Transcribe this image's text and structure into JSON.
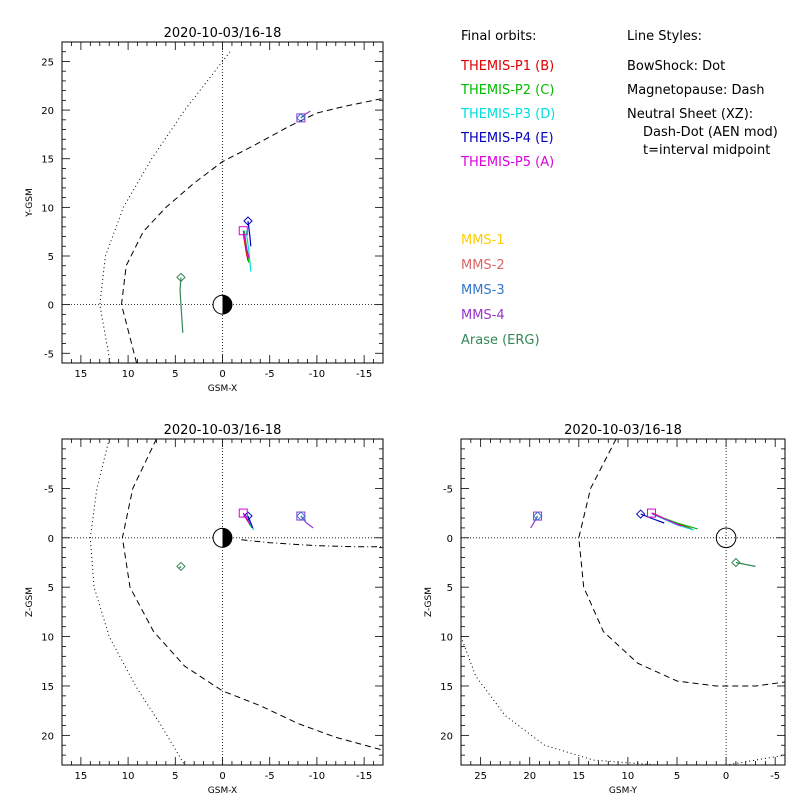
{
  "chart_data": [
    {
      "id": "xy",
      "type": "line",
      "title": "2020-10-03/16-18",
      "xlabel": "GSM-X",
      "ylabel": "Y-GSM",
      "xlim": [
        17,
        -17
      ],
      "ylim": [
        27,
        -6
      ],
      "xticks": [
        15,
        10,
        5,
        0,
        -5,
        -10,
        -15
      ],
      "xtick_labels": [
        "15",
        "10",
        "5",
        "0",
        "-5",
        "-10",
        "-15"
      ],
      "yticks": [
        -5,
        0,
        5,
        10,
        15,
        20,
        25
      ],
      "ytick_labels": [
        "-5",
        "0",
        "5",
        "10",
        "15",
        "20",
        "25"
      ],
      "curves": [
        {
          "name": "bowshock",
          "style": "dot",
          "points": [
            [
              11.9,
              -6
            ],
            [
              13,
              0
            ],
            [
              12.4,
              5
            ],
            [
              10.5,
              10
            ],
            [
              7.5,
              15
            ],
            [
              4,
              20
            ],
            [
              1.2,
              23.5
            ],
            [
              -0.8,
              26
            ]
          ]
        },
        {
          "name": "magnetopause",
          "style": "dash",
          "points": [
            [
              9.1,
              -6
            ],
            [
              10.7,
              0
            ],
            [
              10.2,
              4
            ],
            [
              8.4,
              7.5
            ],
            [
              6,
              10
            ],
            [
              3,
              12.5
            ],
            [
              0,
              14.7
            ],
            [
              -3,
              16.2
            ],
            [
              -7,
              18.3
            ],
            [
              -10,
              19.7
            ],
            [
              -13,
              20.4
            ],
            [
              -17,
              21.2
            ]
          ]
        }
      ],
      "series": [
        {
          "name": "THEMIS-P1 (B)",
          "color": "#dd0000",
          "points": [
            [
              -2.2,
              7.3
            ],
            [
              -2.5,
              5.5
            ],
            [
              -2.7,
              4.5
            ]
          ],
          "marker": "none"
        },
        {
          "name": "THEMIS-P2 (C)",
          "color": "#00bb00",
          "points": [
            [
              -2.3,
              7.6
            ],
            [
              -2.6,
              5.6
            ],
            [
              -2.8,
              4.3
            ]
          ],
          "marker": "none"
        },
        {
          "name": "THEMIS-P3 (D)",
          "color": "#00dddd",
          "points": [
            [
              -2.5,
              7.6
            ],
            [
              -2.8,
              5.5
            ],
            [
              -3.0,
              3.4
            ]
          ],
          "marker": "none"
        },
        {
          "name": "THEMIS-P4 (E)",
          "color": "#0000bb",
          "points": [
            [
              -2.7,
              8.6
            ],
            [
              -2.9,
              7.0
            ],
            [
              -3.0,
              6.0
            ]
          ],
          "marker": "diamond"
        },
        {
          "name": "THEMIS-P5 (A)",
          "color": "#dd00dd",
          "points": [
            [
              -2.2,
              7.6
            ],
            [
              -2.5,
              6.0
            ],
            [
              -2.8,
              4.8
            ]
          ],
          "marker": "square"
        },
        {
          "name": "MMS-4",
          "color": "#9933cc",
          "points": [
            [
              -8.3,
              19.2
            ],
            [
              -8.8,
              19.6
            ],
            [
              -9.3,
              19.9
            ]
          ],
          "marker": "square"
        },
        {
          "name": "MMS-3",
          "color": "#3377cc",
          "points": [
            [
              -8.3,
              19.2
            ],
            [
              -8.7,
              19.5
            ]
          ],
          "marker": "diamond"
        },
        {
          "name": "Arase (ERG)",
          "color": "#338855",
          "points": [
            [
              4.4,
              2.8
            ],
            [
              4.5,
              1.5
            ],
            [
              4.2,
              -2.9
            ]
          ],
          "marker": "diamond"
        }
      ]
    },
    {
      "id": "xz",
      "type": "line",
      "title": "2020-10-03/16-18",
      "xlabel": "GSM-X",
      "ylabel": "Z-GSM",
      "xlim": [
        17,
        -17
      ],
      "ylim": [
        -10,
        23
      ],
      "xticks": [
        15,
        10,
        5,
        0,
        -5,
        -10,
        -15
      ],
      "xtick_labels": [
        "15",
        "10",
        "5",
        "0",
        "-5",
        "-10",
        "-15"
      ],
      "yticks": [
        -5,
        0,
        5,
        10,
        15,
        20
      ],
      "ytick_labels": [
        "-5",
        "0",
        "5",
        "10",
        "15",
        "20"
      ],
      "curves": [
        {
          "name": "bowshock",
          "style": "dot",
          "points": [
            [
              12,
              -10
            ],
            [
              13.3,
              -5
            ],
            [
              14,
              0
            ],
            [
              13.6,
              5
            ],
            [
              12,
              10
            ],
            [
              9.2,
              15
            ],
            [
              6.5,
              19
            ],
            [
              4,
              23
            ]
          ]
        },
        {
          "name": "magnetopause",
          "style": "dash",
          "points": [
            [
              7,
              -10
            ],
            [
              9.5,
              -5
            ],
            [
              10.6,
              0
            ],
            [
              9.8,
              5
            ],
            [
              7.3,
              9.5
            ],
            [
              4,
              13
            ],
            [
              0,
              15.5
            ],
            [
              -4,
              17
            ],
            [
              -8,
              18.8
            ],
            [
              -12,
              20.2
            ],
            [
              -17,
              21.5
            ]
          ]
        },
        {
          "name": "neutral-sheet",
          "style": "dashdot",
          "points": [
            [
              -2,
              0.2
            ],
            [
              -5,
              0.5
            ],
            [
              -10,
              0.8
            ],
            [
              -14,
              0.9
            ],
            [
              -17,
              0.9
            ]
          ]
        }
      ],
      "series": [
        {
          "name": "THEMIS-P1 (B)",
          "color": "#dd0000",
          "points": [
            [
              -2.2,
              -2.5
            ],
            [
              -2.6,
              -1.8
            ],
            [
              -3.0,
              -1.2
            ]
          ],
          "marker": "none"
        },
        {
          "name": "THEMIS-P2 (C)",
          "color": "#00bb00",
          "points": [
            [
              -2.4,
              -2.4
            ],
            [
              -2.8,
              -1.6
            ],
            [
              -3.1,
              -1.0
            ]
          ],
          "marker": "none"
        },
        {
          "name": "THEMIS-P3 (D)",
          "color": "#00dddd",
          "points": [
            [
              -2.5,
              -2.3
            ],
            [
              -2.9,
              -1.5
            ],
            [
              -3.3,
              -0.8
            ]
          ],
          "marker": "none"
        },
        {
          "name": "THEMIS-P4 (E)",
          "color": "#0000bb",
          "points": [
            [
              -2.7,
              -2.2
            ],
            [
              -3.0,
              -1.5
            ],
            [
              -3.2,
              -1.0
            ]
          ],
          "marker": "diamond"
        },
        {
          "name": "THEMIS-P5 (A)",
          "color": "#dd00dd",
          "points": [
            [
              -2.2,
              -2.5
            ],
            [
              -2.6,
              -1.9
            ],
            [
              -2.9,
              -1.3
            ]
          ],
          "marker": "square"
        },
        {
          "name": "MMS-4",
          "color": "#9933cc",
          "points": [
            [
              -8.3,
              -2.2
            ],
            [
              -8.9,
              -1.5
            ],
            [
              -9.6,
              -1.0
            ]
          ],
          "marker": "square"
        },
        {
          "name": "MMS-3",
          "color": "#3377cc",
          "points": [
            [
              -8.3,
              -2.2
            ],
            [
              -8.8,
              -1.7
            ]
          ],
          "marker": "diamond"
        },
        {
          "name": "Arase (ERG)",
          "color": "#338855",
          "points": [
            [
              4.4,
              2.9
            ],
            [
              4.6,
              3.1
            ]
          ],
          "marker": "diamond"
        }
      ]
    },
    {
      "id": "yz",
      "type": "line",
      "title": "2020-10-03/16-18",
      "xlabel": "GSM-Y",
      "ylabel": "Z-GSM",
      "xlim": [
        27,
        -6
      ],
      "ylim": [
        -10,
        23
      ],
      "xticks": [
        25,
        20,
        15,
        10,
        5,
        0,
        -5
      ],
      "xtick_labels": [
        "25",
        "20",
        "15",
        "10",
        "5",
        "0",
        "-5"
      ],
      "yticks": [
        -5,
        0,
        5,
        10,
        15,
        20
      ],
      "ytick_labels": [
        "-5",
        "0",
        "5",
        "10",
        "15",
        "20"
      ],
      "curves": [
        {
          "name": "bowshock",
          "style": "dot",
          "points": [
            [
              27,
              10
            ],
            [
              25.5,
              14
            ],
            [
              22.5,
              18
            ],
            [
              18.5,
              21
            ],
            [
              13.5,
              22.5
            ],
            [
              7,
              23
            ],
            [
              0,
              23
            ],
            [
              -3,
              22.5
            ],
            [
              -6,
              22
            ]
          ]
        },
        {
          "name": "magnetopause",
          "style": "dash",
          "points": [
            [
              11.2,
              -10
            ],
            [
              13.8,
              -5
            ],
            [
              15,
              0
            ],
            [
              14.5,
              5
            ],
            [
              12.5,
              9.5
            ],
            [
              9,
              12.7
            ],
            [
              5,
              14.5
            ],
            [
              1,
              15
            ],
            [
              -3,
              15
            ],
            [
              -6,
              14.6
            ]
          ]
        }
      ],
      "series": [
        {
          "name": "THEMIS-P1 (B)",
          "color": "#dd0000",
          "points": [
            [
              7.5,
              -2.5
            ],
            [
              5.5,
              -1.6
            ],
            [
              3.5,
              -0.9
            ]
          ],
          "marker": "none"
        },
        {
          "name": "THEMIS-P2 (C)",
          "color": "#00bb00",
          "points": [
            [
              7.5,
              -2.4
            ],
            [
              5.0,
              -1.5
            ],
            [
              2.9,
              -0.9
            ]
          ],
          "marker": "none"
        },
        {
          "name": "THEMIS-P3 (D)",
          "color": "#00dddd",
          "points": [
            [
              7.5,
              -2.4
            ],
            [
              5.0,
              -1.3
            ],
            [
              3.3,
              -0.8
            ]
          ],
          "marker": "none"
        },
        {
          "name": "THEMIS-P4 (E)",
          "color": "#0000bb",
          "points": [
            [
              8.7,
              -2.4
            ],
            [
              7.4,
              -1.9
            ],
            [
              6.3,
              -1.5
            ]
          ],
          "marker": "diamond"
        },
        {
          "name": "THEMIS-P5 (A)",
          "color": "#dd00dd",
          "points": [
            [
              7.6,
              -2.5
            ],
            [
              6.0,
              -1.8
            ],
            [
              4.6,
              -1.2
            ]
          ],
          "marker": "square"
        },
        {
          "name": "MMS-4",
          "color": "#9933cc",
          "points": [
            [
              19.2,
              -2.2
            ],
            [
              19.6,
              -1.5
            ],
            [
              19.9,
              -1.0
            ]
          ],
          "marker": "square"
        },
        {
          "name": "MMS-3",
          "color": "#3377cc",
          "points": [
            [
              19.2,
              -2.2
            ],
            [
              19.5,
              -1.7
            ]
          ],
          "marker": "diamond"
        },
        {
          "name": "Arase (ERG)",
          "color": "#338855",
          "points": [
            [
              -1.0,
              2.5
            ],
            [
              -2.0,
              2.7
            ],
            [
              -3.0,
              2.9
            ]
          ],
          "marker": "diamond"
        }
      ]
    }
  ],
  "legend": {
    "title": "Final orbits:",
    "items": [
      {
        "label": "THEMIS-P1 (B)",
        "color": "#dd0000"
      },
      {
        "label": "THEMIS-P2 (C)",
        "color": "#00bb00"
      },
      {
        "label": "THEMIS-P3 (D)",
        "color": "#00dddd"
      },
      {
        "label": "THEMIS-P4 (E)",
        "color": "#0000bb"
      },
      {
        "label": "THEMIS-P5 (A)",
        "color": "#dd00dd"
      }
    ],
    "items2": [
      {
        "label": "MMS-1",
        "color": "#ffcc00"
      },
      {
        "label": "MMS-2",
        "color": "#dd6666"
      },
      {
        "label": "MMS-3",
        "color": "#3377cc"
      },
      {
        "label": "MMS-4",
        "color": "#9933cc"
      },
      {
        "label": "Arase (ERG)",
        "color": "#338855"
      }
    ]
  },
  "line_styles": {
    "title": "Line Styles:",
    "lines": [
      "BowShock: Dot",
      "Magnetopause: Dash",
      "Neutral Sheet (XZ):",
      "Dash-Dot (AEN mod)",
      "t=interval midpoint"
    ]
  }
}
